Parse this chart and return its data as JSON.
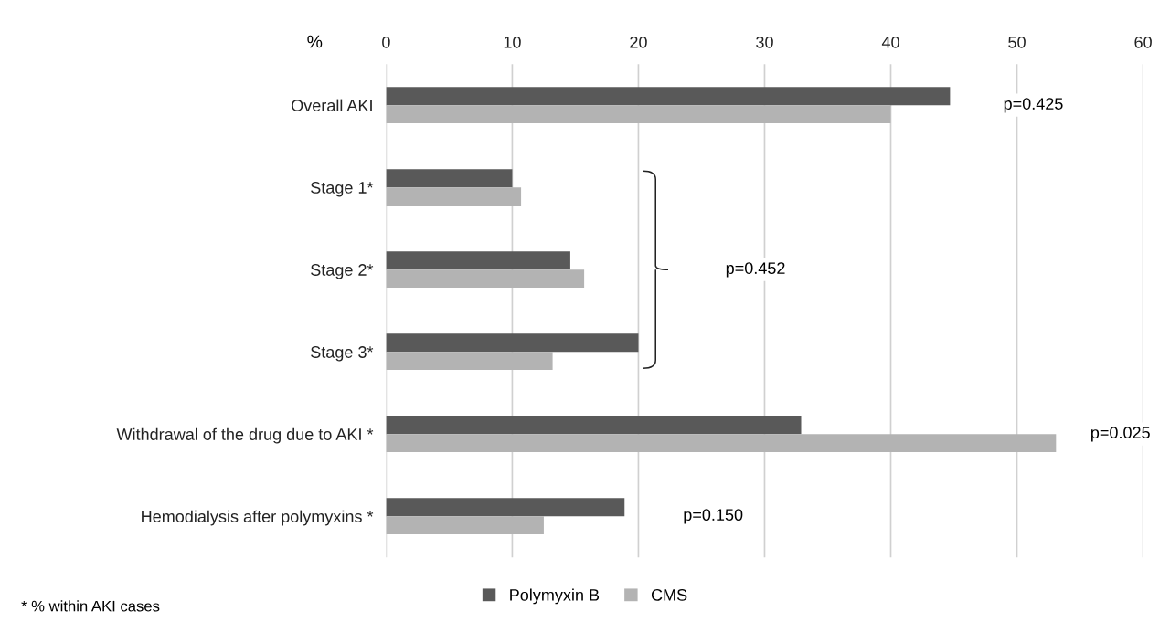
{
  "chart_data": {
    "type": "bar",
    "orientation": "horizontal",
    "xlabel": "%",
    "categories": [
      "Overall AKI",
      "Stage 1*",
      "Stage 2*",
      "Stage 3*",
      "Withdrawal of the drug due to AKI *",
      "Hemodialysis after polymyxins *"
    ],
    "series": [
      {
        "name": "Polymyxin B",
        "color": "#595959",
        "values": [
          44.7,
          10,
          14.6,
          20,
          32.9,
          18.9
        ]
      },
      {
        "name": "CMS",
        "color": "#b3b3b3",
        "values": [
          40,
          10.7,
          15.7,
          13.2,
          53.1,
          12.5
        ]
      }
    ],
    "xlim": [
      0,
      60
    ],
    "xticks": [
      0,
      10,
      20,
      30,
      40,
      50,
      60
    ],
    "grid": "x",
    "legend": "bottom",
    "annotations": [
      "p=0.425",
      "p=0.452",
      "p=0.025",
      "p=0.150",
      "* % within AKI cases"
    ]
  }
}
